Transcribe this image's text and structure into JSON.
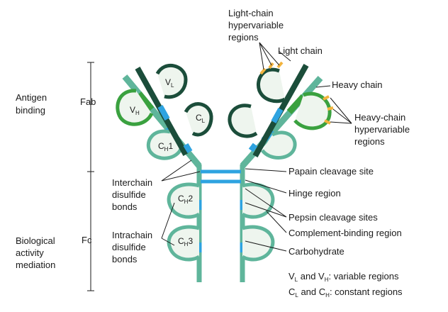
{
  "colors": {
    "heavy_light": "#5fb59b",
    "heavy_dark": "#2f8f74",
    "light_dark": "#1b4d3a",
    "light_green": "#3aa13f",
    "variable_blue": "#2ea3e0",
    "hypervariable": "#f2b33d",
    "fill": "#eef5ee",
    "line": "#1a1a1a"
  },
  "labels": {
    "antigen_binding": [
      "Antigen",
      "binding"
    ],
    "biological_activity": [
      "Biological",
      "activity",
      "mediation"
    ],
    "fab": "Fab",
    "fc": "Fc",
    "light_chain_hypervariable": [
      "Light-chain",
      "hypervariable",
      "regions"
    ],
    "light_chain": "Light chain",
    "heavy_chain": "Heavy chain",
    "heavy_chain_hypervariable": [
      "Heavy-chain",
      "hypervariable",
      "regions"
    ],
    "interchain_disulfide": [
      "Interchain",
      "disulfide",
      "bonds"
    ],
    "intrachain_disulfide": [
      "Intrachain",
      "disulfide",
      "bonds"
    ],
    "papain_cleavage": "Papain cleavage site",
    "hinge_region": "Hinge region",
    "pepsin_cleavage": "Pepsin cleavage sites",
    "complement_binding": "Complement-binding region",
    "carbohydrate": "Carbohydrate"
  },
  "domains": {
    "vl": {
      "main": "V",
      "sub": "L"
    },
    "vh": {
      "main": "V",
      "sub": "H"
    },
    "cl": {
      "main": "C",
      "sub": "L"
    },
    "ch1": {
      "main": "C",
      "sub": "H",
      "suffix": "1"
    },
    "ch2": {
      "main": "C",
      "sub": "H",
      "suffix": "2"
    },
    "ch3": {
      "main": "C",
      "sub": "H",
      "suffix": "3"
    }
  },
  "legend": {
    "variable": {
      "a": "V",
      "a_sub": "L",
      "and": " and V",
      "b_sub": "H",
      "rest": ": variable regions"
    },
    "constant": {
      "a": "C",
      "a_sub": "L",
      "and": " and C",
      "b_sub": "H",
      "rest": ": constant regions"
    }
  }
}
